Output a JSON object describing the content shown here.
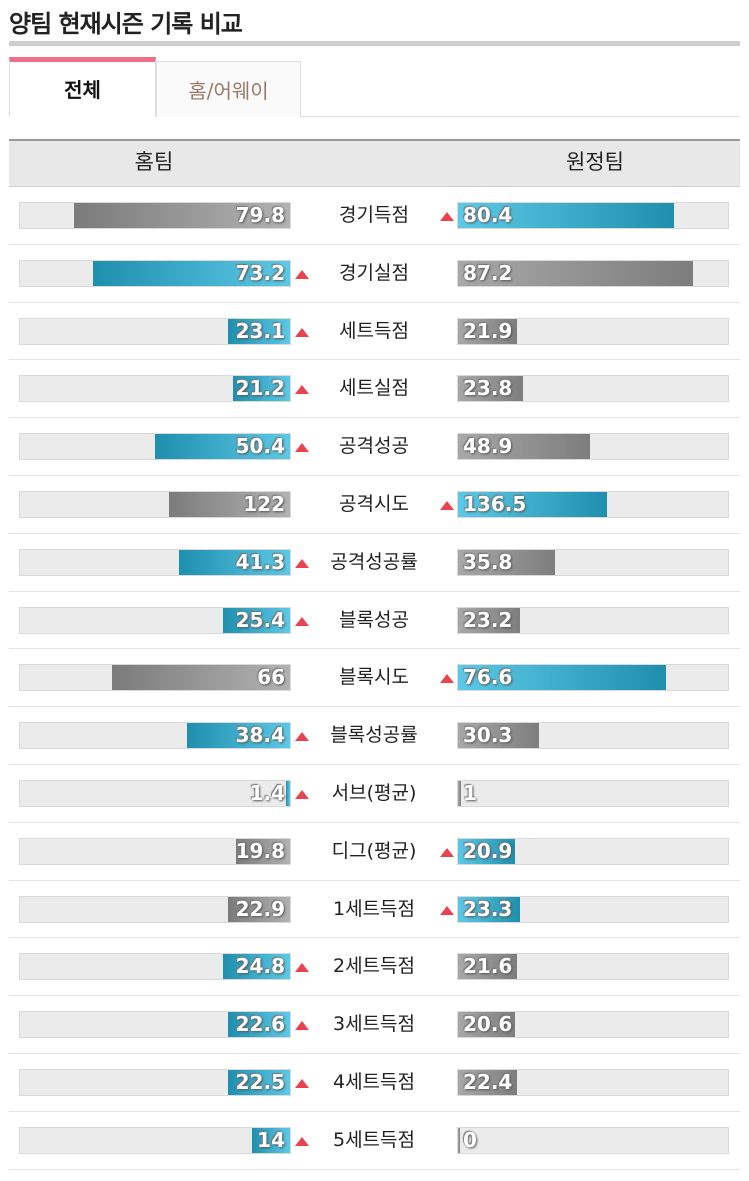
{
  "page_title": "양팀 현재시즌 기록 비교",
  "tabs": {
    "all": "전체",
    "home_away": "홈/어웨이"
  },
  "header": {
    "home": "홈팀",
    "away": "원정팀"
  },
  "colors": {
    "win_bar": "#2aa3c4",
    "lose_bar": "#8f8f8f",
    "up_arrow": "#e9434f",
    "tab_accent": "#f06d87"
  },
  "rows": [
    {
      "label": "경기득점",
      "home": "79.8",
      "away": "80.4",
      "home_fill": 0.8,
      "away_fill": 0.8,
      "winner": "away"
    },
    {
      "label": "경기실점",
      "home": "73.2",
      "away": "87.2",
      "home_fill": 0.73,
      "away_fill": 0.87,
      "winner": "home"
    },
    {
      "label": "세트득점",
      "home": "23.1",
      "away": "21.9",
      "home_fill": 0.23,
      "away_fill": 0.22,
      "winner": "home"
    },
    {
      "label": "세트실점",
      "home": "21.2",
      "away": "23.8",
      "home_fill": 0.21,
      "away_fill": 0.24,
      "winner": "home"
    },
    {
      "label": "공격성공",
      "home": "50.4",
      "away": "48.9",
      "home_fill": 0.5,
      "away_fill": 0.49,
      "winner": "home"
    },
    {
      "label": "공격시도",
      "home": "122",
      "away": "136.5",
      "home_fill": 0.45,
      "away_fill": 0.55,
      "winner": "away"
    },
    {
      "label": "공격성공률",
      "home": "41.3",
      "away": "35.8",
      "home_fill": 0.41,
      "away_fill": 0.36,
      "winner": "home"
    },
    {
      "label": "블록성공",
      "home": "25.4",
      "away": "23.2",
      "home_fill": 0.25,
      "away_fill": 0.23,
      "winner": "home"
    },
    {
      "label": "블록시도",
      "home": "66",
      "away": "76.6",
      "home_fill": 0.66,
      "away_fill": 0.77,
      "winner": "away"
    },
    {
      "label": "블록성공률",
      "home": "38.4",
      "away": "30.3",
      "home_fill": 0.38,
      "away_fill": 0.3,
      "winner": "home"
    },
    {
      "label": "서브(평균)",
      "home": "1.4",
      "away": "1",
      "home_fill": 0.014,
      "away_fill": 0.01,
      "winner": "home"
    },
    {
      "label": "디그(평균)",
      "home": "19.8",
      "away": "20.9",
      "home_fill": 0.2,
      "away_fill": 0.21,
      "winner": "away"
    },
    {
      "label": "1세트득점",
      "home": "22.9",
      "away": "23.3",
      "home_fill": 0.23,
      "away_fill": 0.23,
      "winner": "away"
    },
    {
      "label": "2세트득점",
      "home": "24.8",
      "away": "21.6",
      "home_fill": 0.25,
      "away_fill": 0.22,
      "winner": "home"
    },
    {
      "label": "3세트득점",
      "home": "22.6",
      "away": "20.6",
      "home_fill": 0.23,
      "away_fill": 0.21,
      "winner": "home"
    },
    {
      "label": "4세트득점",
      "home": "22.5",
      "away": "22.4",
      "home_fill": 0.23,
      "away_fill": 0.22,
      "winner": "home"
    },
    {
      "label": "5세트득점",
      "home": "14",
      "away": "0",
      "home_fill": 0.14,
      "away_fill": 0.0,
      "winner": "home"
    }
  ]
}
